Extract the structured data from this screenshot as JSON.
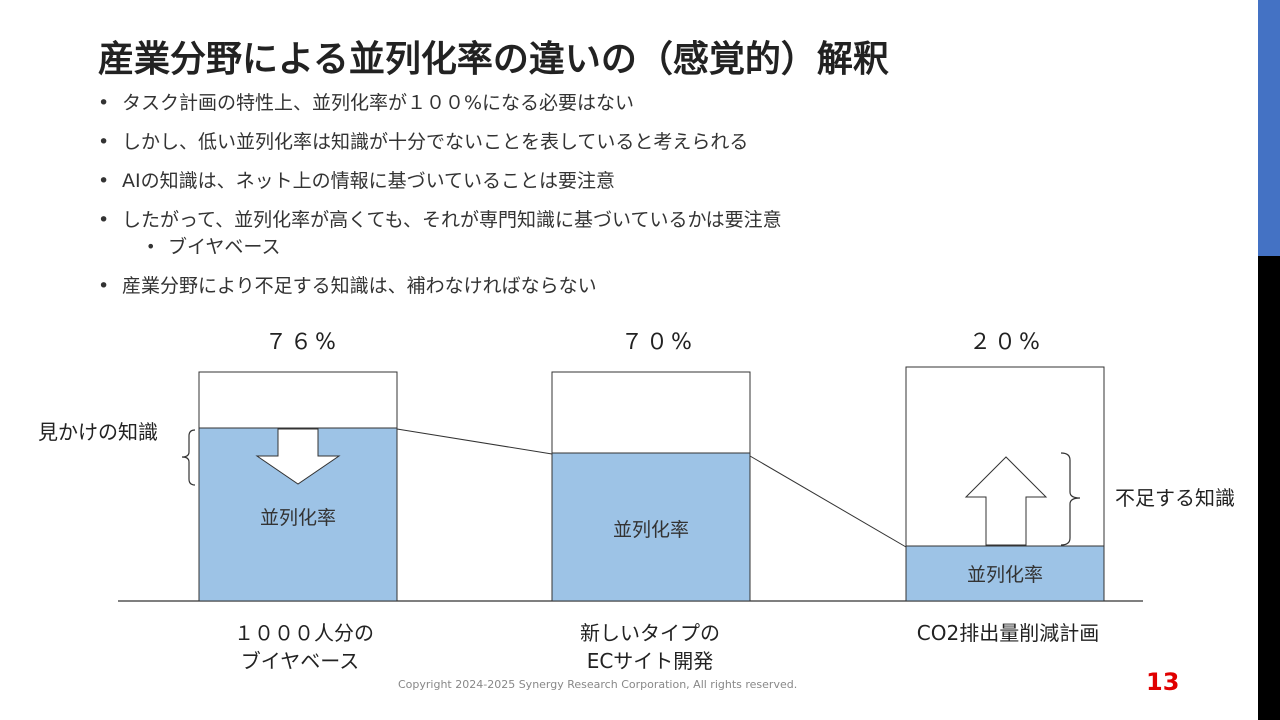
{
  "title": "産業分野による並列化率の違いの（感覚的）解釈",
  "bullets": [
    "タスク計画の特性上、並列化率が１００%になる必要はない",
    "しかし、低い並列化率は知識が十分でないことを表していると考えられる",
    "AIの知識は、ネット上の情報に基づいていることは要注意",
    "したがって、並列化率が高くても、それが専門知識に基づいているかは要注意"
  ],
  "sub_bullet": "ブイヤベース",
  "last_bullet": "産業分野により不足する知識は、補わなければならない",
  "chart_data": {
    "type": "bar",
    "bars": [
      {
        "percent_label": "７６%",
        "fill_label": "並列化率",
        "category_lines": [
          "１０００人分の",
          "ブイヤベース"
        ],
        "value": 76
      },
      {
        "percent_label": "７０%",
        "fill_label": "並列化率",
        "category_lines": [
          "新しいタイプの",
          "ECサイト開発"
        ],
        "value": 70
      },
      {
        "percent_label": "２０%",
        "fill_label": "並列化率",
        "category_lines": [
          "CO2排出量削減計画"
        ],
        "value": 20
      }
    ]
  },
  "annotations": {
    "apparent_knowledge": "見かけの知識",
    "missing_knowledge": "不足する知識"
  },
  "colors": {
    "fill": "#9dc3e6",
    "accent": "#4472c4",
    "page_number": "#e00000"
  },
  "copyright": "Copyright 2024-2025 Synergy Research Corporation, All rights reserved.",
  "page_number": "13"
}
